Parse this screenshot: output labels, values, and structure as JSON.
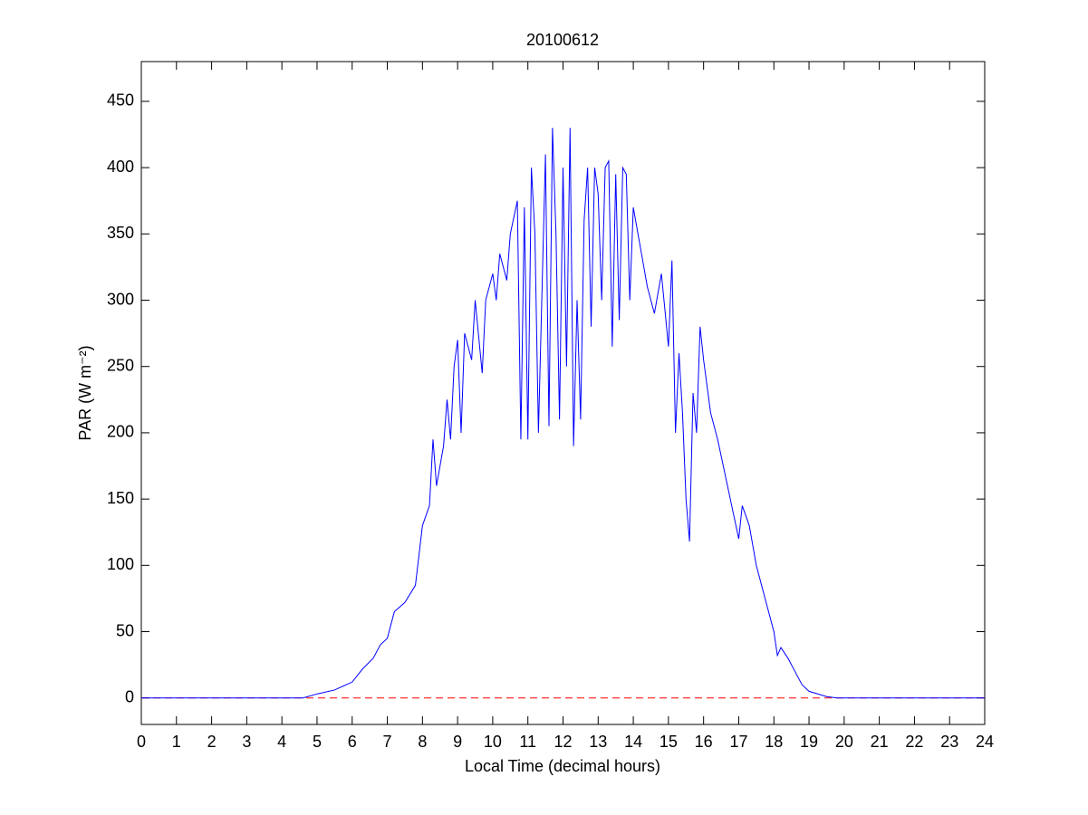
{
  "chart_data": {
    "type": "line",
    "title": "20100612",
    "xlabel": "Local Time (decimal hours)",
    "ylabel": "PAR (W m⁻²)",
    "series": [
      {
        "color": "#0000ff",
        "x": [
          0,
          4.6,
          5,
          5.5,
          6,
          6.3,
          6.6,
          6.8,
          7,
          7.2,
          7.5,
          7.8,
          8,
          8.2,
          8.3,
          8.4,
          8.6,
          8.7,
          8.8,
          8.9,
          9.0,
          9.1,
          9.2,
          9.4,
          9.5,
          9.7,
          9.8,
          10,
          10.1,
          10.2,
          10.4,
          10.5,
          10.7,
          10.8,
          10.9,
          11,
          11.1,
          11.2,
          11.3,
          11.5,
          11.6,
          11.7,
          11.8,
          11.9,
          12,
          12.1,
          12.2,
          12.3,
          12.4,
          12.5,
          12.6,
          12.7,
          12.8,
          12.9,
          13,
          13.1,
          13.2,
          13.3,
          13.4,
          13.5,
          13.6,
          13.7,
          13.8,
          13.9,
          14,
          14.2,
          14.4,
          14.6,
          14.8,
          15,
          15.1,
          15.2,
          15.3,
          15.4,
          15.5,
          15.6,
          15.7,
          15.8,
          15.9,
          16,
          16.2,
          16.4,
          16.6,
          16.8,
          17,
          17.1,
          17.3,
          17.5,
          17.8,
          18,
          18.1,
          18.2,
          18.4,
          18.6,
          18.8,
          19,
          19.5,
          19.8,
          24
        ],
        "values": [
          0,
          0,
          3,
          6,
          12,
          22,
          30,
          40,
          45,
          65,
          72,
          85,
          130,
          145,
          195,
          160,
          190,
          225,
          195,
          250,
          270,
          200,
          275,
          255,
          300,
          245,
          300,
          320,
          300,
          335,
          315,
          350,
          375,
          195,
          370,
          195,
          400,
          350,
          200,
          410,
          205,
          430,
          350,
          210,
          400,
          250,
          430,
          190,
          300,
          210,
          360,
          400,
          280,
          400,
          380,
          300,
          400,
          405,
          265,
          395,
          285,
          400,
          395,
          300,
          370,
          340,
          310,
          290,
          320,
          265,
          330,
          200,
          260,
          215,
          150,
          118,
          230,
          200,
          280,
          255,
          215,
          195,
          170,
          145,
          120,
          145,
          130,
          100,
          70,
          50,
          32,
          38,
          30,
          20,
          10,
          5,
          1,
          0,
          0
        ]
      }
    ],
    "hline": {
      "y": 0,
      "color": "#ff0000",
      "dashed": true
    },
    "xlim": [
      0,
      24
    ],
    "xticks": [
      0,
      1,
      2,
      3,
      4,
      5,
      6,
      7,
      8,
      9,
      10,
      11,
      12,
      13,
      14,
      15,
      16,
      17,
      18,
      19,
      20,
      21,
      22,
      23,
      24
    ],
    "ylim": [
      -20,
      480
    ],
    "yticks": [
      0,
      50,
      100,
      150,
      200,
      250,
      300,
      350,
      400,
      450
    ]
  }
}
